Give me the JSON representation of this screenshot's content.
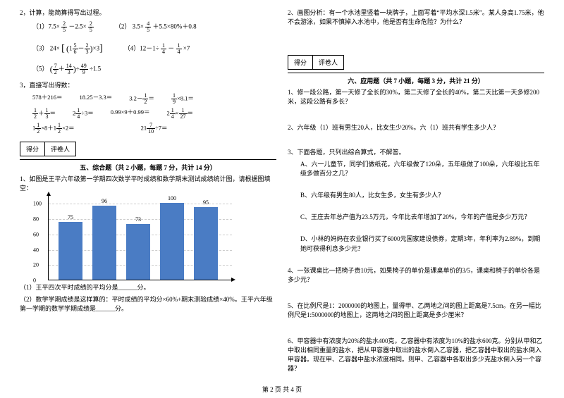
{
  "left": {
    "q2_title": "2，计算，能简算得写出过程。",
    "eq_1_1": "（1）7.5×",
    "eq_1_2": "－2.5×",
    "eq_2_1": "（2）",
    "eq_2_2": "3.5×",
    "eq_2_3": "＋5.5×80%＋0.8",
    "eq_3_1": "（3）",
    "eq_3_2": "24×",
    "eq_4_1": "（4）12－1÷",
    "eq_4_2": "－",
    "eq_4_3": "×7",
    "eq_5_1": "（5）",
    "eq_5_3": "÷1.5",
    "q3_title": "3，直接写出得数：",
    "r1a": "578＋216＝",
    "r1b": "18.25－3.3＝",
    "r1c": "3.2－",
    "r1c2": "＝",
    "r1d1": "",
    "r1d2": "×8.1＝",
    "r2a1": "",
    "r2a2": "＋",
    "r2a3": "＝",
    "r2b1": "2",
    "r2b2": "÷3＝",
    "r2c": "0.99×9＋0.99＝",
    "r2d1": "2",
    "r2d2": "×",
    "r2d3": "＝",
    "r3a1": "1",
    "r3a2": "×8＋1",
    "r3a3": "×2＝",
    "r3b1": "21",
    "r3b2": "÷7＝",
    "scorebox_a": "得分",
    "scorebox_b": "评卷人",
    "sect5_title": "五、综合题（共 2 小题，每题 7 分，共计 14 分）",
    "sect5_q1": "1、如图是王平六年级第一学期四次数学平时成绩和数学期末测试成绩统计图，请根据图填空：",
    "chart": {
      "ylabels": [
        "0",
        "20",
        "40",
        "60",
        "80",
        "100"
      ],
      "bars": [
        {
          "v": 75,
          "lbl": "75"
        },
        {
          "v": 96,
          "lbl": "96"
        },
        {
          "v": 73,
          "lbl": "73"
        },
        {
          "v": 100,
          "lbl": "100"
        },
        {
          "v": 95,
          "lbl": "95"
        }
      ],
      "bar_color": "#4a7cc4",
      "ymax": 110
    },
    "sect5_sub1": "（1）王平四次平时成绩的平均分是______分。",
    "sect5_sub2": "（2）数学学期成绩是这样算的：平时成绩的平均分×60%+期末测验成绩×40%。王平六年级第一学期的数学学期成绩是______分。"
  },
  "right": {
    "q2": "2、画图分析：有一个水池里竖着一块牌子，上面写着“平均水深1.5米”。某人身高1.75米，他不会游泳，如果不慎掉入水池中，他是否有生命危险？为什么？",
    "scorebox_a": "得分",
    "scorebox_b": "评卷人",
    "sect6_title": "六、应用题（共 7 小题，每题 3 分，共计 21 分）",
    "q6_1": "1、修一段公路，第一天修了全长的30%，第二天修了全长的40%，第二天比第一天多修200米，这段公路有多长？",
    "q6_2": "2、六年级（1）班有男生20人，比女生少20%。六（1）班共有学生多少人？",
    "q6_3": "3、下面各题，只列出综合算式，不解答。",
    "q6_3a": "A、六一儿童节，同学们做纸花。六年级做了120朵，五年级做了100朵，六年级比五年级多做百分之几？",
    "q6_3b": "B、六年级有男生80人，比女生多，女生有多少人？",
    "q6_3c": "C、王庄去年总产值为23.5万元，今年比去年增加了20%，今年的产值是多少万元？",
    "q6_3d": "D、小林的妈妈在农业银行买了6000元国家建设债券，定期3年，年利率为2.89%，到期她可获得利息多少元？",
    "q6_4": "4、一张课桌比一把椅子贵10元，如果椅子的单价是课桌单价的3/5，课桌和椅子的单价各是多少元？",
    "q6_5": "5、在比例尺是1：2000000的地图上，量得甲、乙两地之间的图上距离是7.5cm。在另一幅比例尺是1:5000000的地图上，这两地之间的图上距离是多少厘米？",
    "q6_6": "6、甲容器中有浓度为20%的盐水400克，乙容器中有浓度为10%的盐水600克。分别从甲和乙中取出相同重量的盐水，把从甲容器中取出的盐水倒入乙容器，把乙容器中取出的盐水倒入甲容器。现在甲、乙容器中盐水浓度相同。则甲、乙容器中各取出多少克盐水倒入另一个容器？"
  },
  "footer": "第 2 页 共 4 页"
}
